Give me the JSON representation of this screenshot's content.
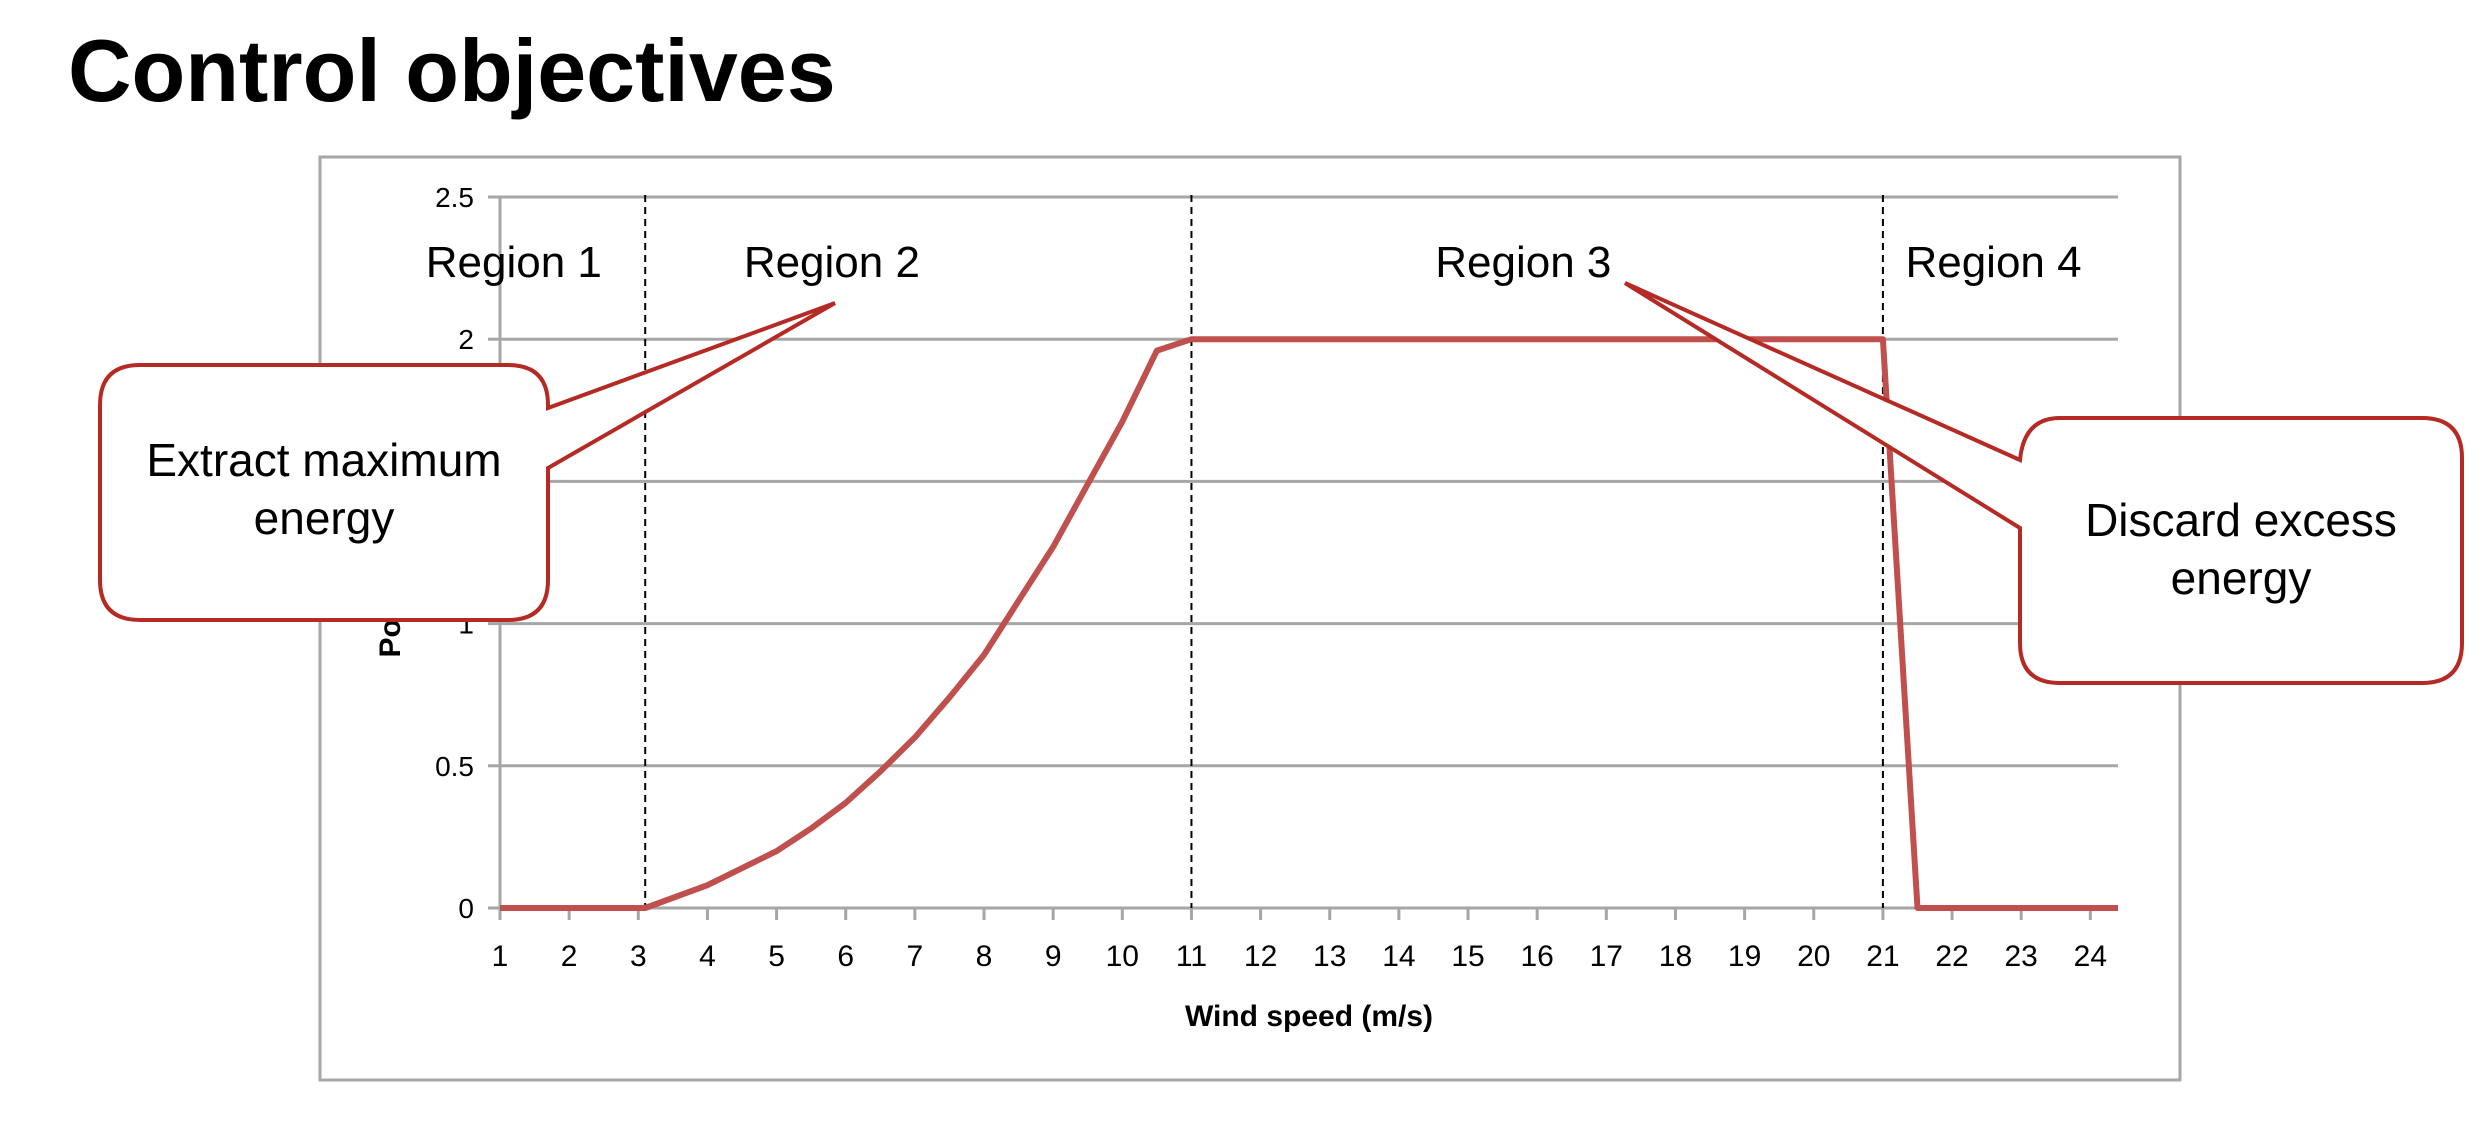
{
  "page": {
    "title": "Control objectives"
  },
  "chart_data": {
    "type": "line",
    "title": "",
    "xlabel": "Wind speed (m/s)",
    "ylabel": "Power",
    "xlim": [
      1,
      24.4
    ],
    "ylim": [
      0,
      2.5
    ],
    "x_ticks": [
      1,
      2,
      3,
      4,
      5,
      6,
      7,
      8,
      9,
      10,
      11,
      12,
      13,
      14,
      15,
      16,
      17,
      18,
      19,
      20,
      21,
      22,
      23,
      24
    ],
    "y_ticks": [
      0,
      0.5,
      1,
      1.5,
      2,
      2.5
    ],
    "y_tick_labels": [
      "0",
      "0.5",
      "1",
      "",
      "2",
      "2.5"
    ],
    "grid": "horizontal",
    "line_color": "#c0504d",
    "series": [
      {
        "name": "",
        "points": [
          [
            1,
            0
          ],
          [
            3,
            0
          ],
          [
            3.1,
            0
          ],
          [
            4,
            0.08
          ],
          [
            5,
            0.2
          ],
          [
            5.5,
            0.28
          ],
          [
            6,
            0.37
          ],
          [
            6.5,
            0.48
          ],
          [
            7,
            0.6
          ],
          [
            7.5,
            0.74
          ],
          [
            8,
            0.89
          ],
          [
            8.5,
            1.08
          ],
          [
            9,
            1.27
          ],
          [
            9.5,
            1.49
          ],
          [
            10,
            1.71
          ],
          [
            10.5,
            1.96
          ],
          [
            11,
            2
          ],
          [
            21,
            2
          ],
          [
            21.5,
            0
          ],
          [
            24.4,
            0
          ]
        ]
      }
    ],
    "region_boundaries": [
      3.1,
      11,
      21
    ],
    "regions": [
      {
        "label": "Region 1",
        "x": 1.2
      },
      {
        "label": "Region 2",
        "x": 5.8
      },
      {
        "label": "Region 3",
        "x": 15.8
      },
      {
        "label": "Region 4",
        "x": 22.6
      }
    ],
    "annotations": [
      {
        "text_lines": [
          "Extract maximum",
          "energy"
        ],
        "points_to": "Region 2"
      },
      {
        "text_lines": [
          "Discard excess",
          "energy"
        ],
        "points_to": "Region 3"
      }
    ]
  }
}
